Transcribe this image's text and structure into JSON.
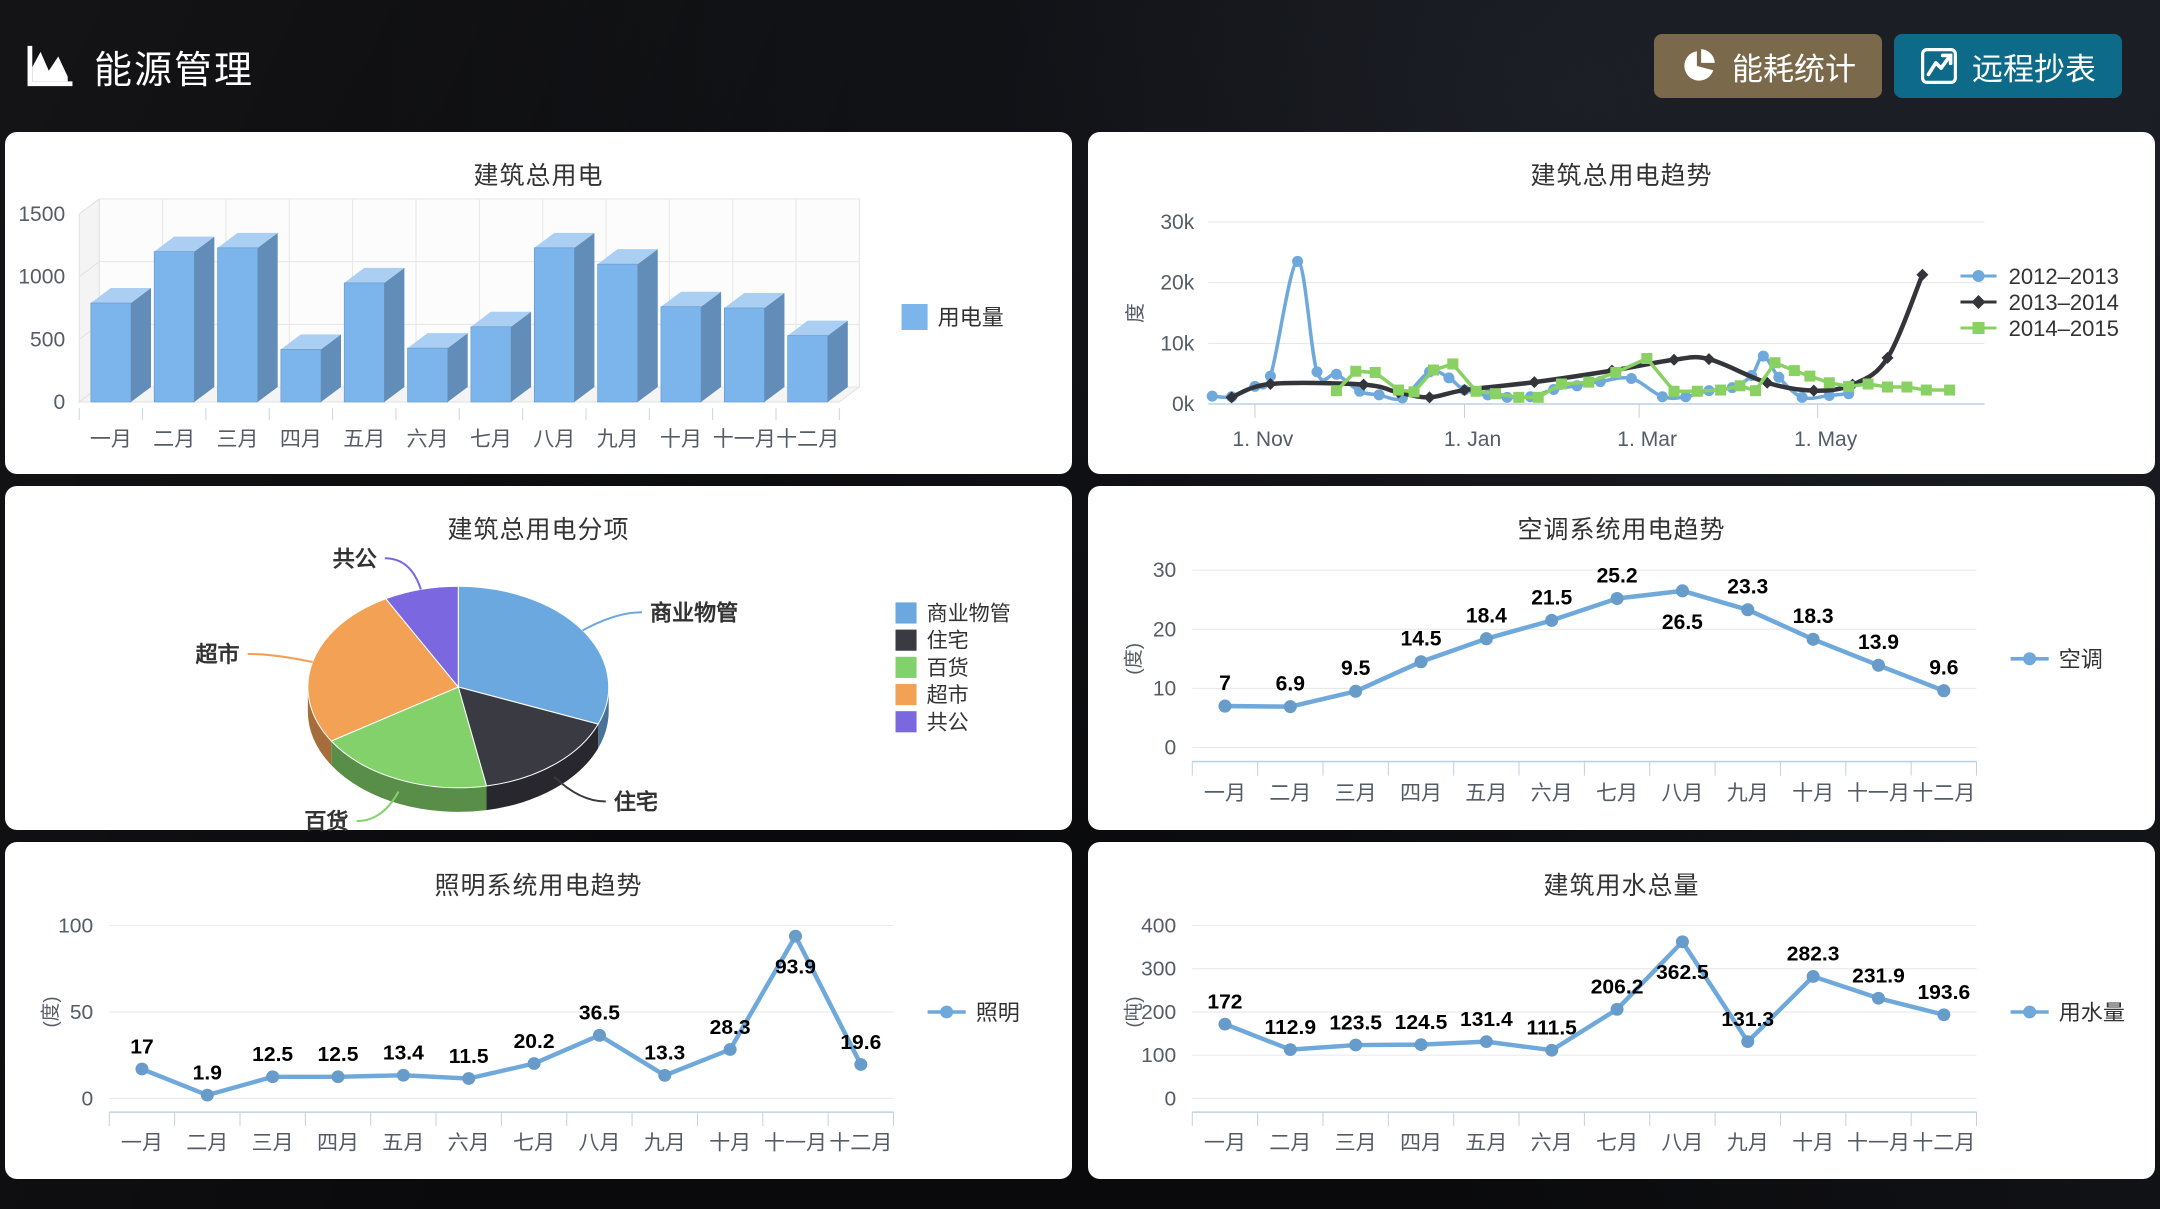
{
  "header": {
    "title": "能源管理",
    "logo_icon": "area-chart-icon",
    "buttons": [
      {
        "label": "能耗统计",
        "icon": "pie-chart-icon",
        "bg": "#7a694a"
      },
      {
        "label": "远程抄表",
        "icon": "line-chart-icon",
        "bg": "#0d6a89"
      }
    ]
  },
  "colors": {
    "panel_bg": "#ffffff",
    "page_bg": "#0a0a0c",
    "title_text": "#333333",
    "axis_text": "#555c66",
    "grid_line": "#e6e6e6",
    "axis_line": "#bdd2e2",
    "primary_blue": "#6fa9dc",
    "bar_blue": "#7cb5ec",
    "data_label": "#000000"
  },
  "chart_data": [
    {
      "type": "bar",
      "variant": "3d-column",
      "title": "建筑总用电",
      "categories": [
        "一月",
        "二月",
        "三月",
        "四月",
        "五月",
        "六月",
        "七月",
        "八月",
        "九月",
        "十月",
        "十一月",
        "十二月"
      ],
      "series": [
        {
          "name": "用电量",
          "color": "#7cb5ec",
          "values": [
            790,
            1200,
            1230,
            420,
            950,
            430,
            600,
            1230,
            1100,
            760,
            750,
            530
          ]
        }
      ],
      "ylim": [
        0,
        1500
      ],
      "yticks": [
        0,
        500,
        1000,
        1500
      ],
      "legend_position": "right",
      "grid": true
    },
    {
      "type": "line",
      "variant": "multi-series-trend",
      "title": "建筑总用电趋势",
      "ylabel": "度",
      "ylim": [
        0,
        30
      ],
      "yticks": [
        "0k",
        "10k",
        "20k",
        "30k"
      ],
      "xticks": [
        {
          "label": "1. Nov",
          "x": 0.06
        },
        {
          "label": "1. Jan",
          "x": 0.33
        },
        {
          "label": "1. Mar",
          "x": 0.555
        },
        {
          "label": "1. May",
          "x": 0.785
        }
      ],
      "legend_position": "right",
      "series": [
        {
          "name": "2012–2013",
          "color": "#6fa9dc",
          "marker": "circle",
          "width": 3.5,
          "smooth": true,
          "points": [
            [
              0.005,
              1.3
            ],
            [
              0.03,
              1.2
            ],
            [
              0.06,
              2.9
            ],
            [
              0.08,
              4.6
            ],
            [
              0.115,
              23.5
            ],
            [
              0.14,
              5.3
            ],
            [
              0.165,
              4.9
            ],
            [
              0.195,
              2.1
            ],
            [
              0.22,
              1.5
            ],
            [
              0.25,
              1.0
            ],
            [
              0.285,
              5.3
            ],
            [
              0.31,
              4.3
            ],
            [
              0.33,
              2.3
            ],
            [
              0.36,
              1.5
            ],
            [
              0.385,
              1.1
            ],
            [
              0.415,
              1.2
            ],
            [
              0.445,
              2.4
            ],
            [
              0.475,
              3.0
            ],
            [
              0.505,
              3.7
            ],
            [
              0.545,
              4.2
            ],
            [
              0.585,
              1.2
            ],
            [
              0.615,
              1.2
            ],
            [
              0.645,
              2.2
            ],
            [
              0.675,
              2.7
            ],
            [
              0.7,
              4.7
            ],
            [
              0.715,
              7.9
            ],
            [
              0.735,
              4.4
            ],
            [
              0.765,
              1.1
            ],
            [
              0.8,
              1.4
            ],
            [
              0.825,
              1.7
            ]
          ]
        },
        {
          "name": "2013–2014",
          "color": "#34343b",
          "marker": "diamond",
          "width": 4.5,
          "smooth": true,
          "points": [
            [
              0.03,
              1.1
            ],
            [
              0.08,
              3.3
            ],
            [
              0.2,
              3.2
            ],
            [
              0.245,
              1.9
            ],
            [
              0.285,
              1.1
            ],
            [
              0.33,
              2.3
            ],
            [
              0.42,
              3.6
            ],
            [
              0.52,
              5.5
            ],
            [
              0.6,
              7.3
            ],
            [
              0.645,
              7.4
            ],
            [
              0.72,
              3.5
            ],
            [
              0.78,
              2.2
            ],
            [
              0.83,
              3.2
            ],
            [
              0.875,
              7.6
            ],
            [
              0.92,
              21.3
            ]
          ]
        },
        {
          "name": "2014–2015",
          "color": "#8ad163",
          "marker": "square",
          "width": 3.5,
          "smooth": false,
          "points": [
            [
              0.165,
              2.2
            ],
            [
              0.19,
              5.4
            ],
            [
              0.215,
              5.2
            ],
            [
              0.245,
              2.3
            ],
            [
              0.265,
              2.0
            ],
            [
              0.29,
              5.6
            ],
            [
              0.315,
              6.6
            ],
            [
              0.345,
              2.1
            ],
            [
              0.37,
              1.7
            ],
            [
              0.4,
              1.1
            ],
            [
              0.425,
              1.1
            ],
            [
              0.455,
              3.3
            ],
            [
              0.49,
              3.6
            ],
            [
              0.525,
              5.2
            ],
            [
              0.565,
              7.5
            ],
            [
              0.6,
              2.1
            ],
            [
              0.63,
              2.1
            ],
            [
              0.66,
              2.3
            ],
            [
              0.685,
              3.0
            ],
            [
              0.705,
              2.2
            ],
            [
              0.73,
              6.8
            ],
            [
              0.755,
              5.5
            ],
            [
              0.775,
              4.6
            ],
            [
              0.8,
              3.5
            ],
            [
              0.825,
              2.9
            ],
            [
              0.85,
              3.3
            ],
            [
              0.875,
              2.8
            ],
            [
              0.9,
              2.8
            ],
            [
              0.925,
              2.3
            ],
            [
              0.955,
              2.3
            ]
          ]
        }
      ]
    },
    {
      "type": "pie",
      "variant": "3d",
      "title": "建筑总用电分项",
      "legend_position": "right",
      "slices": [
        {
          "name": "商业物管",
          "value": 31,
          "color": "#6ba8df"
        },
        {
          "name": "住宅",
          "value": 16,
          "color": "#3a3a42"
        },
        {
          "name": "百货",
          "value": 19,
          "color": "#83d16a"
        },
        {
          "name": "超市",
          "value": 26,
          "color": "#f2a155"
        },
        {
          "name": "共公",
          "value": 8,
          "color": "#7b68e0"
        }
      ]
    },
    {
      "type": "line",
      "variant": "labeled",
      "title": "空调系统用电趋势",
      "ylabel": "(度)",
      "categories": [
        "一月",
        "二月",
        "三月",
        "四月",
        "五月",
        "六月",
        "七月",
        "八月",
        "九月",
        "十月",
        "十一月",
        "十二月"
      ],
      "values": [
        7,
        6.9,
        9.5,
        14.5,
        18.4,
        21.5,
        25.2,
        26.5,
        23.3,
        18.3,
        13.9,
        9.6
      ],
      "ylim": [
        0,
        30
      ],
      "yticks": [
        0,
        10,
        20,
        30
      ],
      "series_name": "空调",
      "color": "#6fa9dc",
      "labels_below_indices": [
        7
      ],
      "legend_position": "right"
    },
    {
      "type": "line",
      "variant": "labeled",
      "title": "照明系统用电趋势",
      "ylabel": "(度)",
      "categories": [
        "一月",
        "二月",
        "三月",
        "四月",
        "五月",
        "六月",
        "七月",
        "八月",
        "九月",
        "十月",
        "十一月",
        "十二月"
      ],
      "values": [
        17,
        1.9,
        12.5,
        12.5,
        13.4,
        11.5,
        20.2,
        36.5,
        13.3,
        28.3,
        93.9,
        19.6
      ],
      "ylim": [
        0,
        100
      ],
      "yticks": [
        0,
        50,
        100
      ],
      "series_name": "照明",
      "color": "#6fa9dc",
      "labels_below_indices": [
        10
      ],
      "legend_position": "right"
    },
    {
      "type": "line",
      "variant": "labeled",
      "title": "建筑用水总量",
      "ylabel": "(吨)",
      "categories": [
        "一月",
        "二月",
        "三月",
        "四月",
        "五月",
        "六月",
        "七月",
        "八月",
        "九月",
        "十月",
        "十一月",
        "十二月"
      ],
      "values": [
        172,
        112.9,
        123.5,
        124.5,
        131.4,
        111.5,
        206.2,
        362.5,
        131.3,
        282.3,
        231.9,
        193.6
      ],
      "ylim": [
        0,
        400
      ],
      "yticks": [
        0,
        100,
        200,
        300,
        400
      ],
      "series_name": "用水量",
      "color": "#6fa9dc",
      "labels_below_indices": [
        7
      ],
      "legend_position": "right"
    }
  ]
}
